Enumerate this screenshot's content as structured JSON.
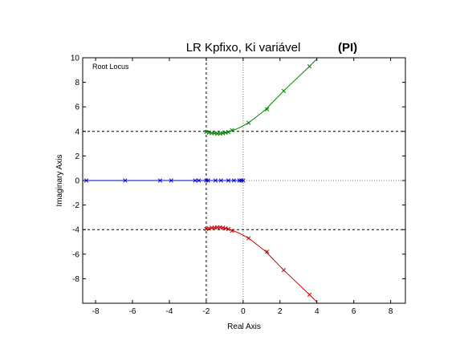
{
  "chart_data": {
    "type": "line",
    "title": "LR   Kpfixo,   Ki variável",
    "title_tag": "(PI)",
    "inplot_label": "Root Locus",
    "xlabel": "Real Axis",
    "ylabel": "Imaginary Axis",
    "xlim": [
      -8.7,
      8.8
    ],
    "ylim": [
      -10,
      10
    ],
    "x_ticks": [
      -8,
      -6,
      -4,
      -2,
      0,
      2,
      4,
      6,
      8
    ],
    "y_ticks": [
      -8,
      -6,
      -4,
      -2,
      0,
      2,
      4,
      6,
      8,
      10
    ],
    "grid": false,
    "series": [
      {
        "color": "#0000cc",
        "line_points": [
          [
            -8.7,
            0
          ],
          [
            0,
            0
          ]
        ],
        "markers": [
          [
            -8.5,
            0
          ],
          [
            -6.4,
            0
          ],
          [
            -4.5,
            0
          ],
          [
            -3.9,
            0
          ],
          [
            -2.6,
            0
          ],
          [
            -2.4,
            0
          ],
          [
            -2.0,
            0
          ],
          [
            -1.9,
            0
          ],
          [
            -1.5,
            0
          ],
          [
            -1.2,
            0
          ],
          [
            -0.8,
            0
          ],
          [
            -0.5,
            0
          ],
          [
            -0.2,
            0
          ],
          [
            -0.1,
            0
          ],
          [
            0.0,
            0
          ]
        ]
      },
      {
        "color": "#008000",
        "line_points": [
          [
            -2.0,
            4.0
          ],
          [
            -1.8,
            3.9
          ],
          [
            -1.5,
            3.85
          ],
          [
            -1.2,
            3.85
          ],
          [
            -0.9,
            3.9
          ],
          [
            -0.6,
            4.05
          ],
          [
            -0.2,
            4.3
          ],
          [
            0.3,
            4.7
          ],
          [
            1.2,
            5.75
          ],
          [
            2.2,
            7.3
          ],
          [
            3.6,
            9.3
          ],
          [
            4.0,
            9.9
          ]
        ],
        "markers": [
          [
            -2.0,
            3.95
          ],
          [
            -1.85,
            3.9
          ],
          [
            -1.7,
            3.85
          ],
          [
            -1.55,
            3.85
          ],
          [
            -1.4,
            3.82
          ],
          [
            -1.25,
            3.82
          ],
          [
            -1.1,
            3.85
          ],
          [
            -0.95,
            3.9
          ],
          [
            -0.8,
            3.95
          ],
          [
            -0.6,
            4.1
          ],
          [
            0.3,
            4.7
          ],
          [
            1.3,
            5.8
          ],
          [
            2.2,
            7.3
          ],
          [
            3.6,
            9.3
          ]
        ]
      },
      {
        "color": "#cc0000",
        "line_points": [
          [
            -2.0,
            -4.0
          ],
          [
            -1.8,
            -3.9
          ],
          [
            -1.5,
            -3.85
          ],
          [
            -1.2,
            -3.85
          ],
          [
            -0.9,
            -3.9
          ],
          [
            -0.6,
            -4.05
          ],
          [
            -0.2,
            -4.3
          ],
          [
            0.3,
            -4.7
          ],
          [
            1.2,
            -5.75
          ],
          [
            2.2,
            -7.3
          ],
          [
            3.6,
            -9.3
          ],
          [
            4.0,
            -9.9
          ]
        ],
        "markers": [
          [
            -2.0,
            -3.95
          ],
          [
            -1.85,
            -3.9
          ],
          [
            -1.7,
            -3.85
          ],
          [
            -1.55,
            -3.85
          ],
          [
            -1.4,
            -3.82
          ],
          [
            -1.25,
            -3.82
          ],
          [
            -1.1,
            -3.85
          ],
          [
            -0.95,
            -3.9
          ],
          [
            -0.8,
            -3.95
          ],
          [
            -0.6,
            -4.1
          ],
          [
            0.3,
            -4.7
          ],
          [
            1.3,
            -5.8
          ],
          [
            2.2,
            -7.3
          ],
          [
            3.6,
            -9.3
          ]
        ]
      }
    ],
    "reference_lines": [
      {
        "orientation": "horizontal",
        "value": 4,
        "style": "dashed"
      },
      {
        "orientation": "horizontal",
        "value": -4,
        "style": "dashed"
      },
      {
        "orientation": "horizontal",
        "value": 0,
        "style": "dotted"
      },
      {
        "orientation": "vertical",
        "value": 0,
        "style": "dotted"
      },
      {
        "orientation": "vertical",
        "value": -2,
        "style": "dashed"
      }
    ]
  }
}
